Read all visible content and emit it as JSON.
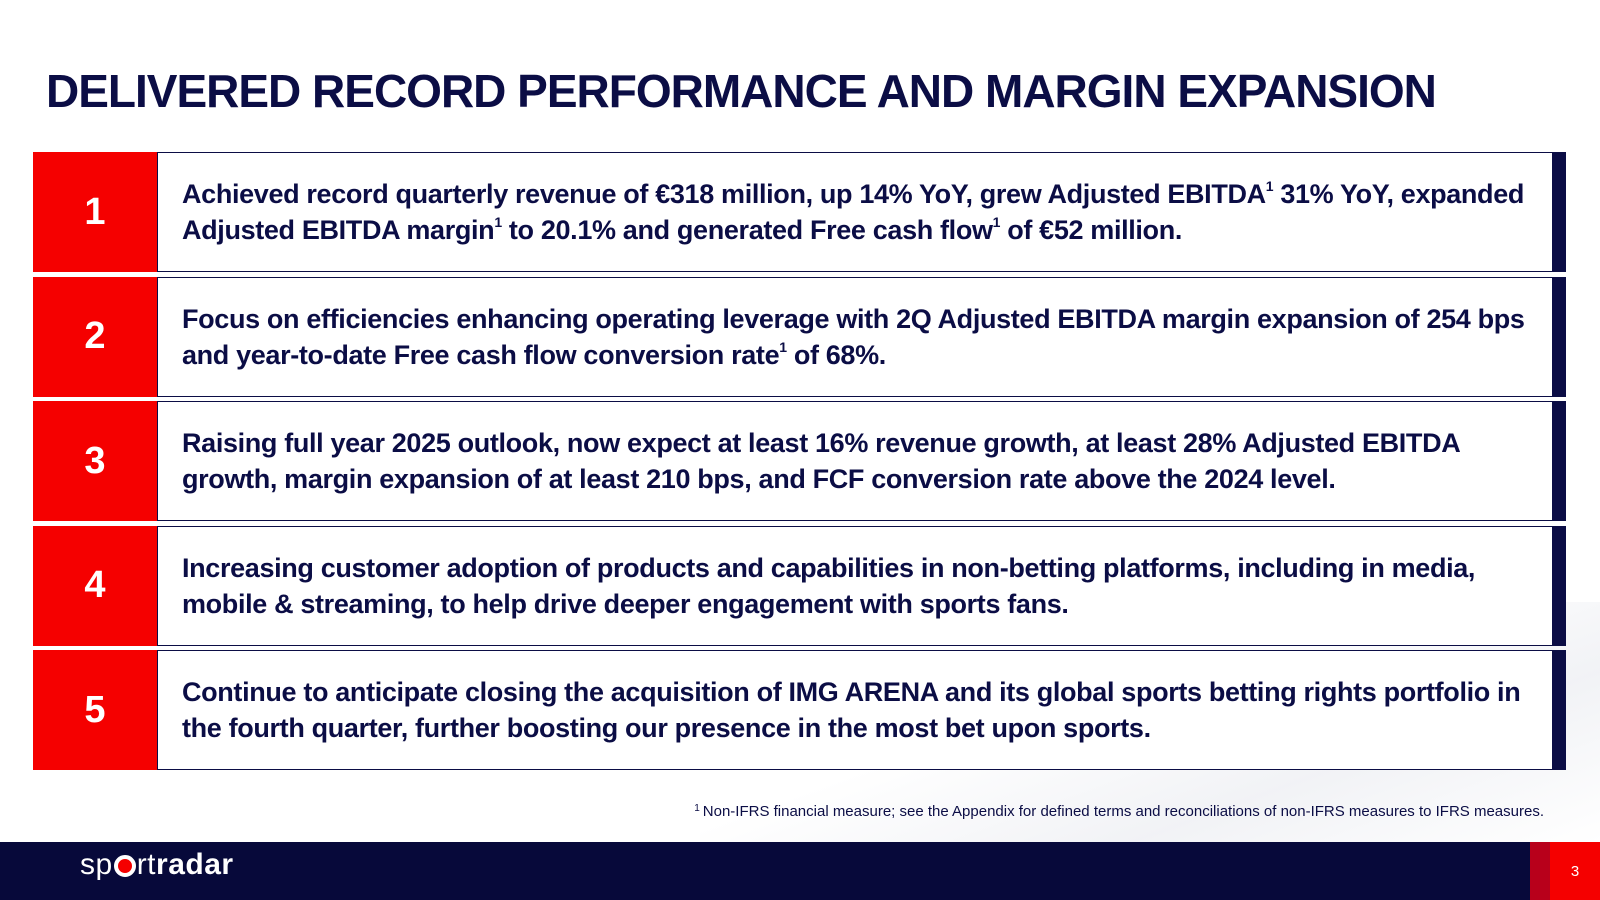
{
  "slide": {
    "title": "DELIVERED RECORD PERFORMANCE AND MARGIN EXPANSION",
    "page_number": "3"
  },
  "items": [
    {
      "number": "1",
      "text": [
        {
          "t": "Achieved record quarterly revenue of  €318 million, up 14% YoY,  grew Adjusted EBITDA"
        },
        {
          "sup": "1"
        },
        {
          "t": " 31% YoY, expanded Adjusted EBITDA margin"
        },
        {
          "sup": "1"
        },
        {
          "t": " to 20.1% and generated Free cash flow"
        },
        {
          "sup": "1"
        },
        {
          "t": " of  €52 million."
        }
      ]
    },
    {
      "number": "2",
      "text": [
        {
          "t": "Focus on efficiencies enhancing operating leverage with 2Q Adjusted EBITDA margin expansion of 254 bps and year-to-date Free cash flow conversion rate"
        },
        {
          "sup": "1"
        },
        {
          "t": " of 68%."
        }
      ]
    },
    {
      "number": "3",
      "text": [
        {
          "t": "Raising full year 2025 outlook, now expect at least 16% revenue growth,  at least 28%  Adjusted EBITDA growth,  margin expansion of at least 210 bps, and FCF conversion rate above the 2024 level."
        }
      ]
    },
    {
      "number": "4",
      "text": [
        {
          "t": "Increasing customer adoption of products and capabilities in non-betting  platforms, including in media, mobile & streaming, to help drive deeper engagement with sports fans."
        }
      ]
    },
    {
      "number": "5",
      "text": [
        {
          "t": "Continue to anticipate closing  the acquisition of IMG ARENA and its global sports betting rights portfolio in the fourth quarter, further boosting our presence in the most bet upon sports."
        }
      ]
    }
  ],
  "footnote": {
    "marker": "1",
    "text": "Non-IFRS financial measure; see the Appendix for defined terms and reconciliations of non-IFRS measures to IFRS measures."
  },
  "footer": {
    "logo": {
      "part1": "sp",
      "part2": "rt",
      "part3": "radar"
    }
  },
  "colors": {
    "navy": "#0b0d45",
    "red": "#f50000",
    "footer": "#07093a"
  }
}
